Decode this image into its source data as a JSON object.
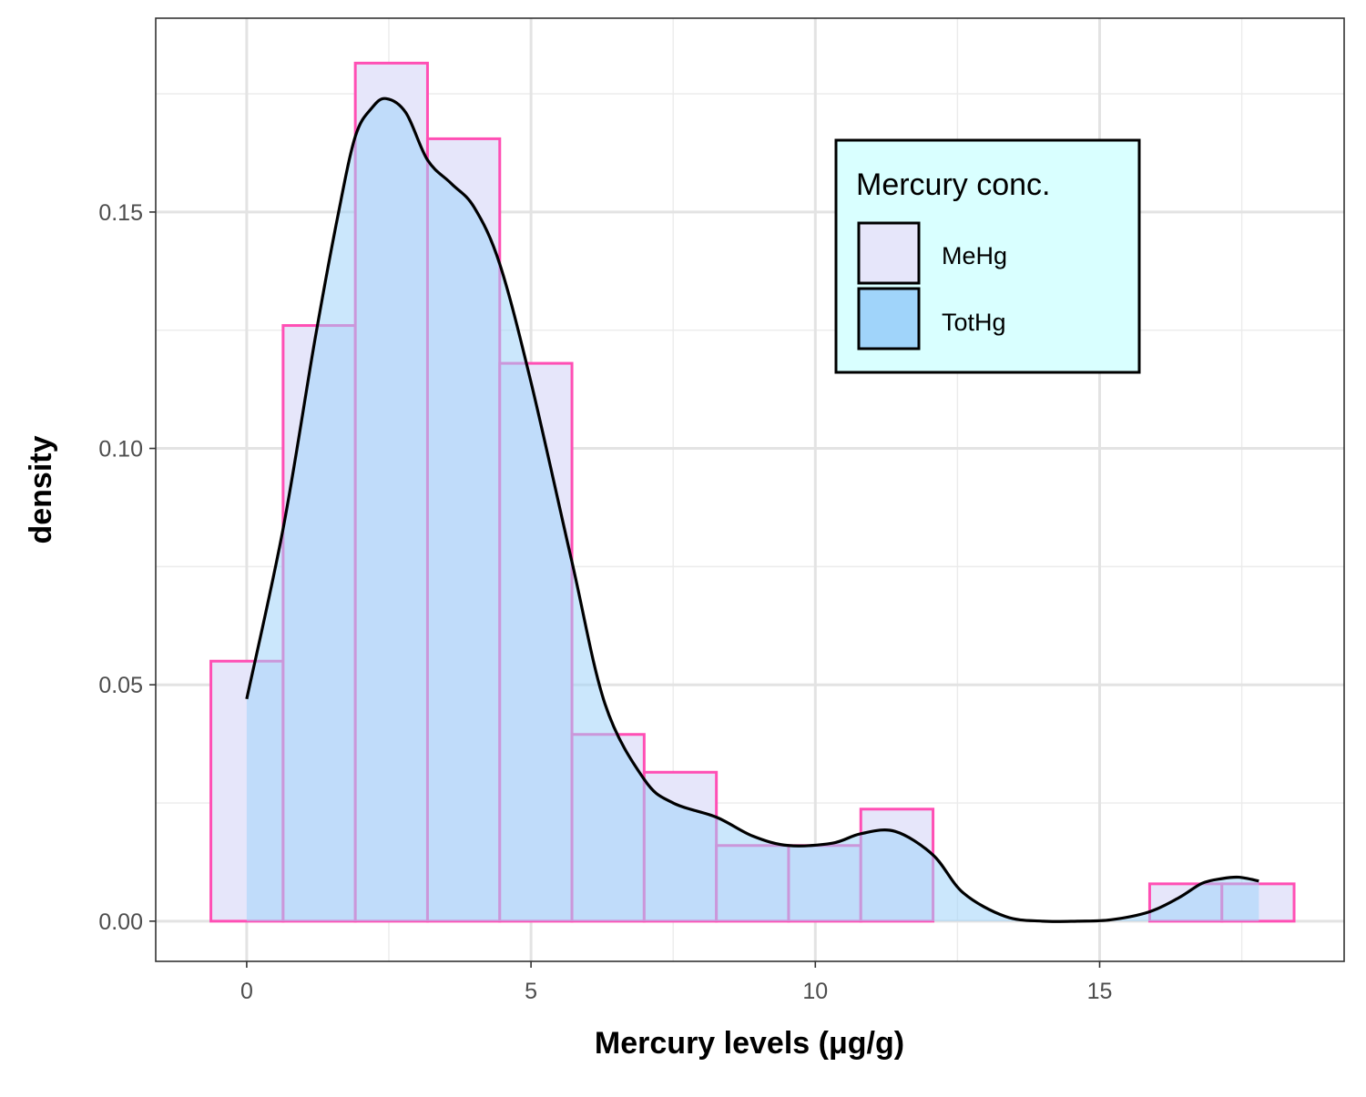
{
  "chart_data": {
    "type": "histogram",
    "xlabel": "Mercury levels (μg/g)",
    "ylabel": "density",
    "xlim": [
      -1.6,
      19.3
    ],
    "ylim": [
      -0.0085,
      0.191
    ],
    "x_ticks": [
      0,
      5,
      10,
      15
    ],
    "x_tick_labels": [
      "0",
      "5",
      "10",
      "15"
    ],
    "y_ticks": [
      0.0,
      0.05,
      0.1,
      0.15
    ],
    "y_tick_labels": [
      "0.00",
      "0.05",
      "0.10",
      "0.15"
    ],
    "grid": true,
    "legend": {
      "title": "Mercury conc.",
      "placement": "top-right",
      "entries": [
        {
          "label": "MeHg",
          "fill": "#e6e6fa",
          "border": "#000000"
        },
        {
          "label": "TotHg",
          "fill": "#a0d4fa",
          "border": "#000000"
        }
      ]
    },
    "series": [
      {
        "name": "MeHg",
        "kind": "histogram",
        "bin_edges": [
          -0.63,
          0.64,
          1.91,
          3.18,
          4.45,
          5.72,
          6.99,
          8.26,
          9.53,
          10.8,
          12.07,
          13.34,
          14.61,
          15.88,
          17.15,
          18.42
        ],
        "densities": [
          0.055,
          0.126,
          0.1815,
          0.1655,
          0.118,
          0.0395,
          0.0315,
          0.016,
          0.016,
          0.0237,
          0.0,
          0.0,
          0.0,
          0.0079,
          0.0079
        ],
        "fill": "#e6e6fa",
        "border": "#ff4fb4"
      },
      {
        "name": "TotHg",
        "kind": "density",
        "x": [
          0.0,
          0.64,
          1.2,
          1.6,
          1.91,
          2.2,
          2.45,
          2.8,
          3.18,
          3.6,
          4.0,
          4.45,
          5.0,
          5.72,
          6.3,
          6.99,
          7.5,
          8.26,
          8.9,
          9.53,
          10.3,
          10.8,
          11.4,
          12.07,
          12.6,
          13.34,
          14.0,
          14.61,
          15.2,
          15.88,
          16.4,
          16.8,
          17.15,
          17.45,
          17.8
        ],
        "y": [
          0.047,
          0.083,
          0.123,
          0.149,
          0.166,
          0.172,
          0.174,
          0.171,
          0.161,
          0.156,
          0.151,
          0.139,
          0.114,
          0.076,
          0.046,
          0.03,
          0.025,
          0.022,
          0.018,
          0.016,
          0.0165,
          0.0185,
          0.019,
          0.014,
          0.006,
          0.001,
          0.0,
          0.0,
          0.0003,
          0.002,
          0.005,
          0.008,
          0.009,
          0.0093,
          0.0085
        ],
        "fill": "#a0d4fa",
        "line": "#000000"
      }
    ]
  }
}
